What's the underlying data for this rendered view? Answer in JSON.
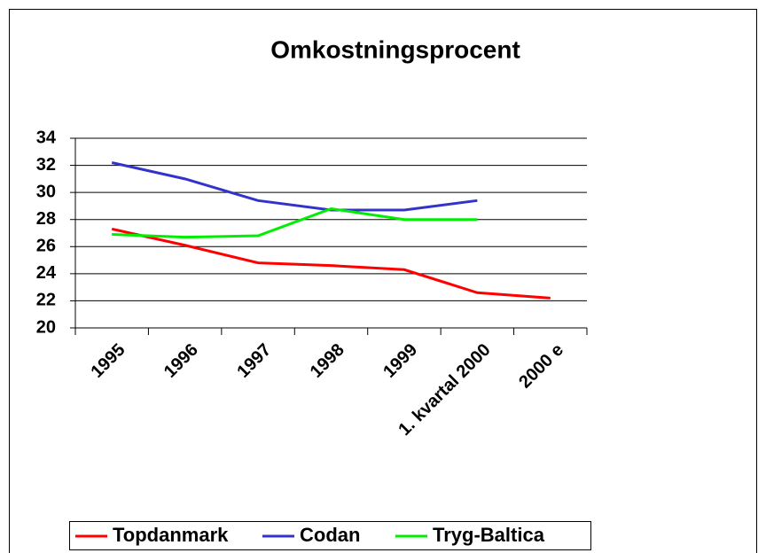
{
  "chart_data": {
    "type": "line",
    "title": "Omkostningsprocent",
    "categories": [
      "1995",
      "1996",
      "1997",
      "1998",
      "1999",
      "1. kvartal 2000",
      "2000 e"
    ],
    "series": [
      {
        "name": "Topdanmark",
        "color": "#ff0000",
        "values": [
          27.3,
          26.1,
          24.8,
          24.6,
          24.3,
          22.6,
          22.2
        ]
      },
      {
        "name": "Codan",
        "color": "#3333cc",
        "values": [
          32.2,
          31.0,
          29.4,
          28.7,
          28.7,
          29.4,
          null
        ]
      },
      {
        "name": "Tryg-Baltica",
        "color": "#00ee00",
        "values": [
          26.9,
          26.7,
          26.8,
          28.8,
          28.0,
          28.0,
          null
        ]
      }
    ],
    "ylim": [
      20,
      34
    ],
    "yticks": [
      20,
      22,
      24,
      26,
      28,
      30,
      32,
      34
    ],
    "grid": true,
    "legend": "bottom"
  }
}
